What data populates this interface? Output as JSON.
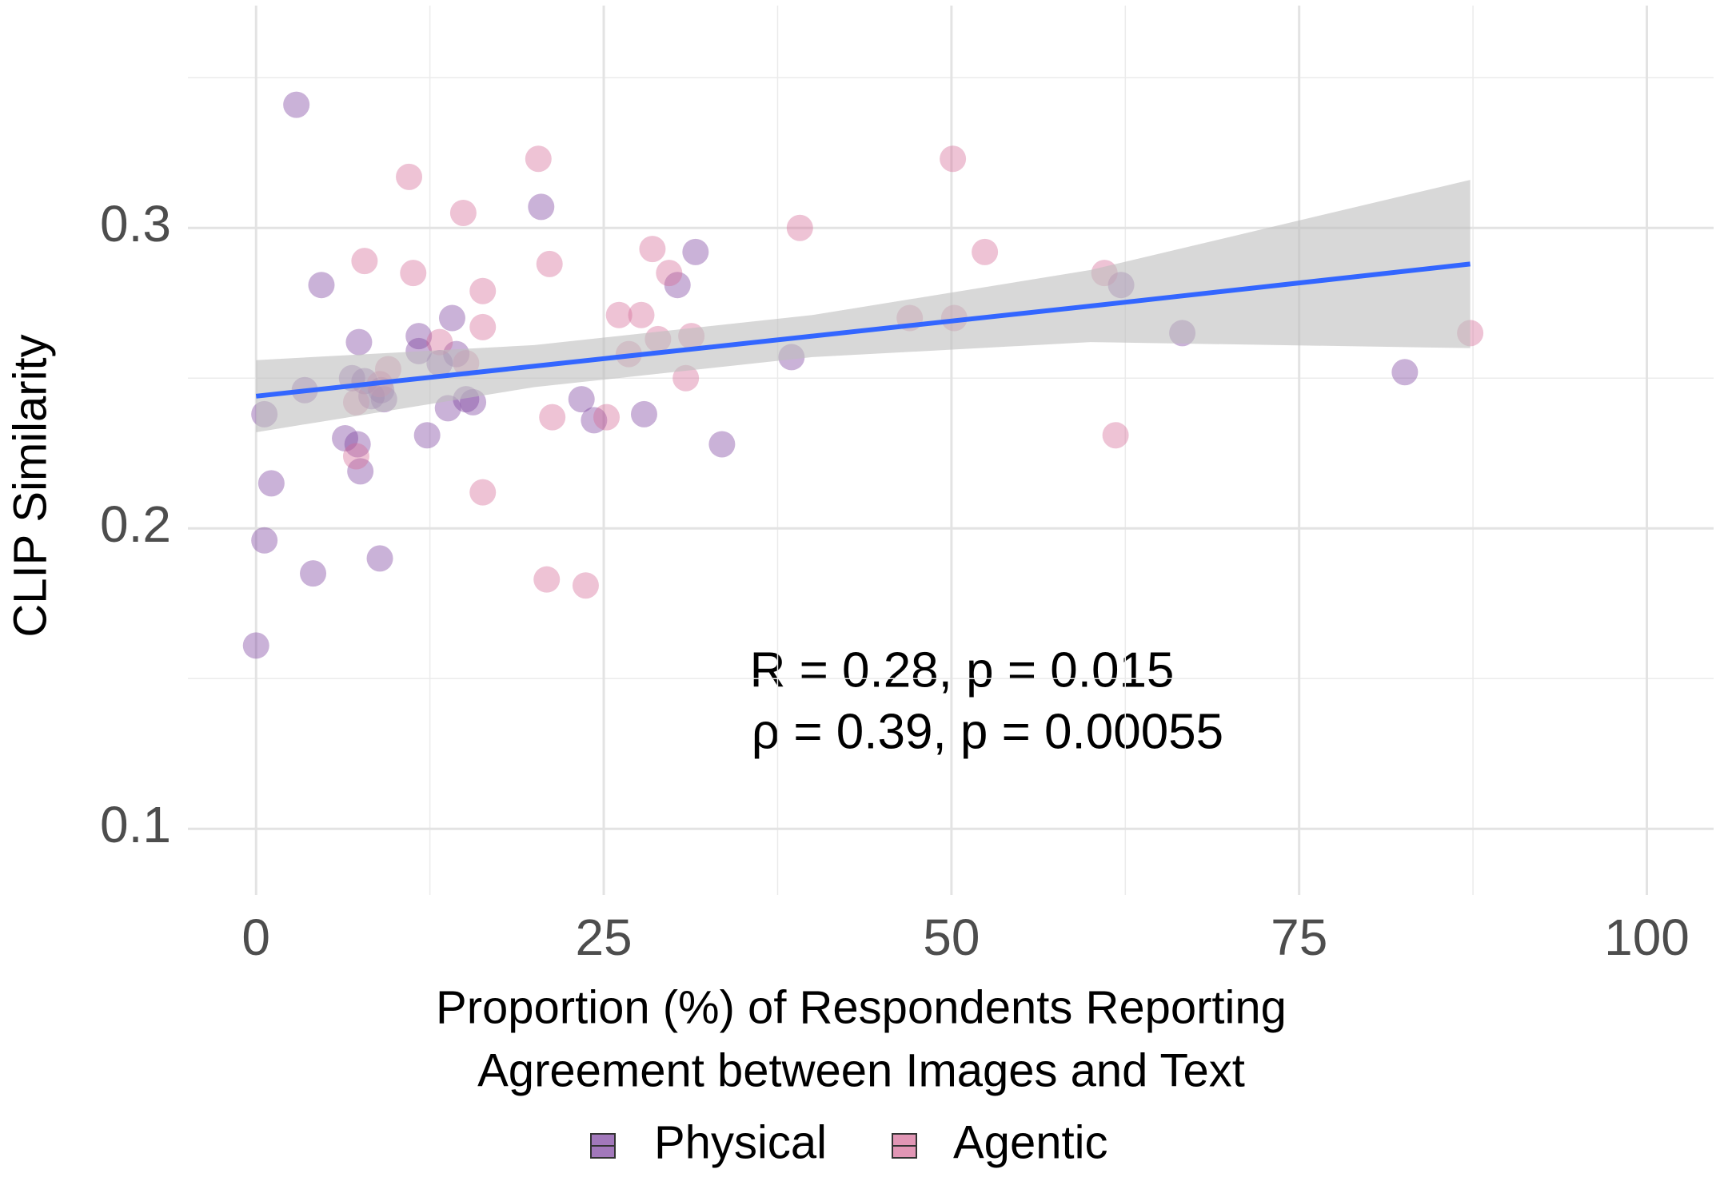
{
  "chart_data": {
    "type": "scatter",
    "xlabel": [
      "Proportion (%) of Respondents Reporting",
      "Agreement between Images and Text"
    ],
    "ylabel": "CLIP Similarity",
    "xlim": [
      -4.9,
      104.8
    ],
    "ylim": [
      0.078,
      0.374
    ],
    "xticks": [
      0,
      25,
      50,
      75,
      100
    ],
    "yticks": [
      0.1,
      0.2,
      0.3
    ],
    "minor_xticks": [
      12.5,
      37.5,
      62.5,
      87.5
    ],
    "minor_yticks": [
      0.15,
      0.25,
      0.35
    ],
    "grid": true,
    "legend": "bottom",
    "series": [
      {
        "name": "Physical",
        "color": "#7b3f9e",
        "x": [
          2.9,
          20.5,
          31.6,
          4.7,
          30.3,
          62.2,
          14.1,
          66.6,
          11.7,
          7.4,
          11.7,
          14.4,
          13.2,
          38.5,
          82.6,
          6.9,
          7.8,
          3.5,
          9.0,
          8.3,
          9.2,
          15.1,
          15.6,
          13.8,
          23.4,
          0.6,
          27.9,
          24.3,
          12.3,
          6.4,
          7.3,
          33.5,
          7.5,
          1.1,
          0.6,
          8.9,
          4.1,
          0.0
        ],
        "values": [
          0.341,
          0.307,
          0.292,
          0.281,
          0.281,
          0.281,
          0.27,
          0.265,
          0.264,
          0.262,
          0.259,
          0.258,
          0.255,
          0.257,
          0.252,
          0.25,
          0.249,
          0.246,
          0.246,
          0.244,
          0.243,
          0.243,
          0.242,
          0.24,
          0.243,
          0.238,
          0.238,
          0.236,
          0.231,
          0.23,
          0.228,
          0.228,
          0.219,
          0.215,
          0.196,
          0.19,
          0.185,
          0.161
        ]
      },
      {
        "name": "Agentic",
        "color": "#d46a96",
        "x": [
          50.1,
          20.3,
          11.0,
          14.9,
          39.1,
          28.5,
          52.4,
          7.8,
          21.1,
          29.7,
          11.3,
          61.0,
          16.3,
          26.1,
          27.7,
          47.0,
          50.2,
          16.3,
          87.3,
          28.9,
          31.3,
          13.2,
          26.8,
          15.1,
          9.5,
          30.9,
          8.9,
          7.2,
          21.3,
          25.2,
          61.8,
          7.2,
          16.3,
          20.9,
          23.7
        ],
        "values": [
          0.323,
          0.323,
          0.317,
          0.305,
          0.3,
          0.293,
          0.292,
          0.289,
          0.288,
          0.285,
          0.285,
          0.285,
          0.279,
          0.271,
          0.271,
          0.27,
          0.27,
          0.267,
          0.265,
          0.263,
          0.264,
          0.262,
          0.258,
          0.255,
          0.253,
          0.25,
          0.248,
          0.242,
          0.237,
          0.237,
          0.231,
          0.224,
          0.212,
          0.183,
          0.181
        ]
      }
    ],
    "fit": {
      "color": "#3366ff",
      "band_color": "#bebebe",
      "x": [
        0,
        20,
        40,
        60,
        87.3
      ],
      "values": [
        0.244,
        0.254,
        0.264,
        0.274,
        0.288
      ],
      "lower": [
        0.232,
        0.247,
        0.257,
        0.262,
        0.26
      ],
      "upper": [
        0.256,
        0.261,
        0.271,
        0.286,
        0.316
      ]
    },
    "annotations": [
      "R = 0.28, p = 0.015",
      "ρ = 0.39, p = 0.00055"
    ]
  }
}
